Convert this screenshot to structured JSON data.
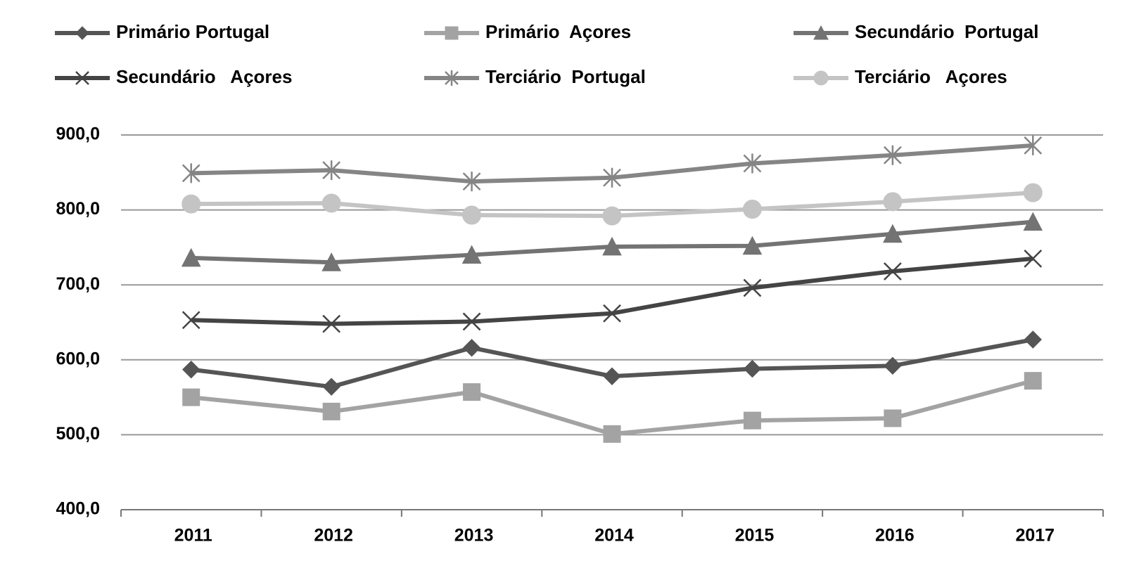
{
  "chart_data": {
    "type": "line",
    "categories": [
      "2011",
      "2012",
      "2013",
      "2014",
      "2015",
      "2016",
      "2017"
    ],
    "series": [
      {
        "name": "Primário Portugal",
        "color": "#555555",
        "marker": "diamond",
        "values": [
          587,
          564,
          616,
          578,
          588,
          592,
          627
        ]
      },
      {
        "name": "Primário  Açores",
        "color": "#a3a3a3",
        "marker": "square",
        "values": [
          550,
          531,
          557,
          501,
          519,
          522,
          572
        ]
      },
      {
        "name": "Secundário  Portugal",
        "color": "#737373",
        "marker": "triangle",
        "values": [
          736,
          730,
          740,
          751,
          752,
          768,
          784
        ]
      },
      {
        "name": "Secundário   Açores",
        "color": "#444444",
        "marker": "x",
        "values": [
          653,
          648,
          651,
          662,
          696,
          718,
          735
        ]
      },
      {
        "name": "Terciário  Portugal",
        "color": "#858585",
        "marker": "star",
        "values": [
          849,
          853,
          838,
          843,
          862,
          873,
          886
        ]
      },
      {
        "name": "Terciário   Açores",
        "color": "#c4c4c4",
        "marker": "circle",
        "values": [
          808,
          809,
          793,
          792,
          801,
          811,
          823
        ]
      }
    ],
    "ylim": [
      400,
      900
    ],
    "yticks": [
      {
        "value": 400,
        "label": "400,0"
      },
      {
        "value": 500,
        "label": "500,0"
      },
      {
        "value": 600,
        "label": "600,0"
      },
      {
        "value": 700,
        "label": "700,0"
      },
      {
        "value": 800,
        "label": "800,0"
      },
      {
        "value": 900,
        "label": "900,0"
      }
    ],
    "grid": true,
    "legend": "top"
  }
}
